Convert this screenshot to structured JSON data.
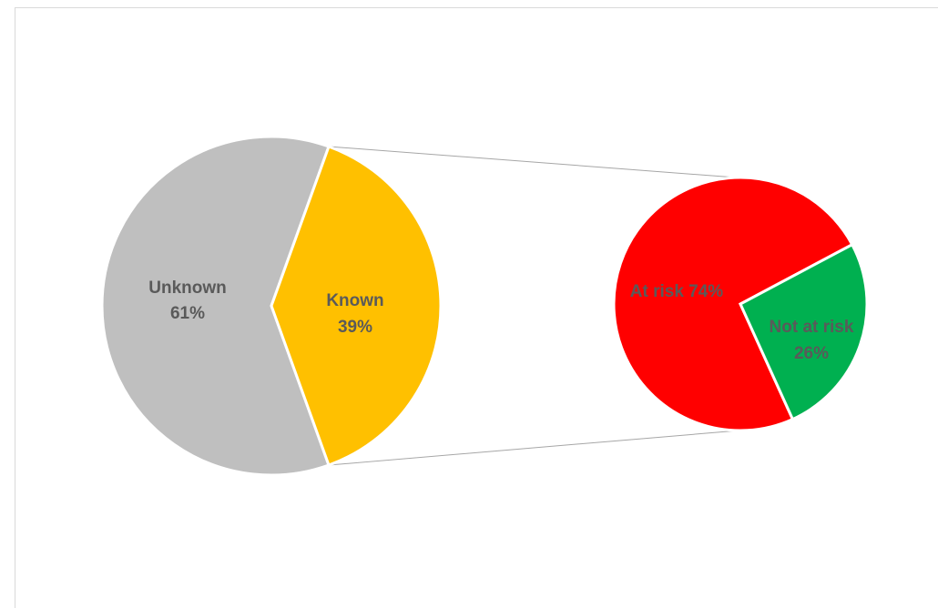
{
  "chart_data": {
    "type": "pie",
    "subtype": "pie-of-pie",
    "title": "",
    "primary": {
      "slices": [
        {
          "name": "Unknown",
          "value": 61,
          "label": "Unknown",
          "pct": "61%",
          "color": "#bfbfbf"
        },
        {
          "name": "Known",
          "value": 39,
          "label": "Known",
          "pct": "39%",
          "color": "#ffc000"
        }
      ]
    },
    "secondary": {
      "breakdown_of": "Known",
      "slices": [
        {
          "name": "At risk",
          "value": 74,
          "label": "At risk 74%",
          "color": "#ff0000"
        },
        {
          "name": "Not at risk",
          "value": 26,
          "label": "Not at risk",
          "pct": "26%",
          "color": "#00b050"
        }
      ]
    },
    "legend": "none",
    "connector_color": "#a6a6a6",
    "label_color": "#5a5a5a"
  }
}
